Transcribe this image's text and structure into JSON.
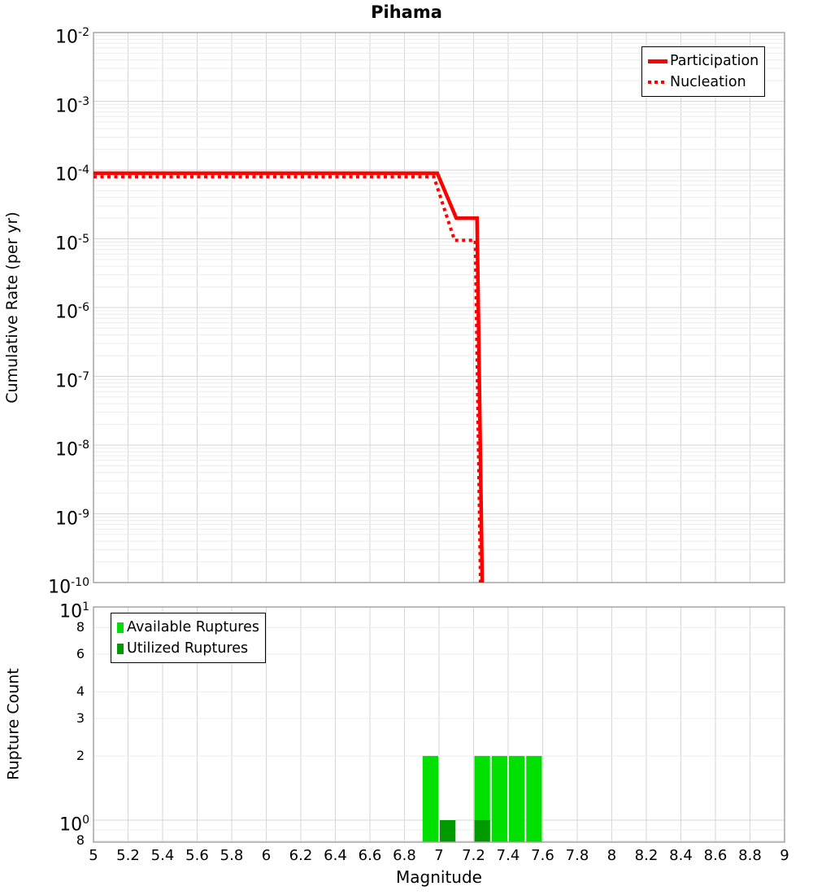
{
  "title": "Pihama",
  "colors": {
    "participation_red": "#ff0000",
    "available_green": "#00e000",
    "utilized_green": "#009900",
    "grid_major": "#d6d6d6",
    "grid_minor": "#ececec",
    "frame": "#9e9e9e",
    "text": "#000000",
    "legend_border": "#000000",
    "background": "#ffffff"
  },
  "chart_data": [
    {
      "type": "line",
      "title": "Pihama",
      "xlabel": "",
      "ylabel": "Cumulative Rate (per yr)",
      "xlim": [
        5,
        9
      ],
      "ylog": true,
      "ylim": [
        1e-10,
        0.01
      ],
      "y_tick_exponents": [
        -2,
        -3,
        -4,
        -5,
        -6,
        -7,
        -8,
        -9,
        -10
      ],
      "grid": true,
      "legend_position": "top-right",
      "series": [
        {
          "name": "Participation",
          "style": "solid",
          "color": "#ff0000",
          "points": [
            [
              5.0,
              9e-05
            ],
            [
              6.99,
              9e-05
            ],
            [
              7.1,
              2e-05
            ],
            [
              7.22,
              2e-05
            ],
            [
              7.25,
              1e-10
            ]
          ]
        },
        {
          "name": "Nucleation",
          "style": "dotted",
          "color": "#ff0000",
          "points": [
            [
              5.0,
              8e-05
            ],
            [
              6.97,
              8e-05
            ],
            [
              7.09,
              9.5e-06
            ],
            [
              7.21,
              9.5e-06
            ],
            [
              7.24,
              1e-10
            ]
          ]
        }
      ]
    },
    {
      "type": "bar",
      "title": "",
      "xlabel": "Magnitude",
      "ylabel": "Rupture Count",
      "xlim": [
        5,
        9
      ],
      "ylog": true,
      "ylim": [
        0.79,
        10
      ],
      "bin_width": 0.1,
      "grid": true,
      "legend_position": "top-left",
      "x_ticks": [
        {
          "v": 5,
          "label": "5"
        },
        {
          "v": 5.2,
          "label": "5.2"
        },
        {
          "v": 5.4,
          "label": "5.4"
        },
        {
          "v": 5.6,
          "label": "5.6"
        },
        {
          "v": 5.8,
          "label": "5.8"
        },
        {
          "v": 6,
          "label": "6"
        },
        {
          "v": 6.2,
          "label": "6.2"
        },
        {
          "v": 6.4,
          "label": "6.4"
        },
        {
          "v": 6.6,
          "label": "6.6"
        },
        {
          "v": 6.8,
          "label": "6.8"
        },
        {
          "v": 7,
          "label": "7"
        },
        {
          "v": 7.2,
          "label": "7.2"
        },
        {
          "v": 7.4,
          "label": "7.4"
        },
        {
          "v": 7.6,
          "label": "7.6"
        },
        {
          "v": 7.8,
          "label": "7.8"
        },
        {
          "v": 8,
          "label": "8"
        },
        {
          "v": 8.2,
          "label": "8.2"
        },
        {
          "v": 8.4,
          "label": "8.4"
        },
        {
          "v": 8.6,
          "label": "8.6"
        },
        {
          "v": 8.8,
          "label": "8.8"
        },
        {
          "v": 9,
          "label": "9"
        }
      ],
      "y_major_ticks": [
        {
          "v": 10,
          "exp": 1
        },
        {
          "v": 1,
          "exp": 0
        }
      ],
      "y_minor_ticks": [
        {
          "v": 8,
          "label": "8"
        },
        {
          "v": 6,
          "label": "6"
        },
        {
          "v": 4,
          "label": "4"
        },
        {
          "v": 3,
          "label": "3"
        },
        {
          "v": 2,
          "label": "2"
        },
        {
          "v": 0.8,
          "label": "8"
        }
      ],
      "series": [
        {
          "name": "Available Ruptures",
          "color": "#00e000",
          "bars": [
            {
              "mag": 6.95,
              "count": 2
            },
            {
              "mag": 7.25,
              "count": 2
            },
            {
              "mag": 7.35,
              "count": 2
            },
            {
              "mag": 7.45,
              "count": 2
            },
            {
              "mag": 7.55,
              "count": 2
            }
          ]
        },
        {
          "name": "Utilized Ruptures",
          "color": "#009900",
          "bars": [
            {
              "mag": 7.05,
              "count": 1
            },
            {
              "mag": 7.25,
              "count": 1
            }
          ]
        }
      ]
    }
  ]
}
